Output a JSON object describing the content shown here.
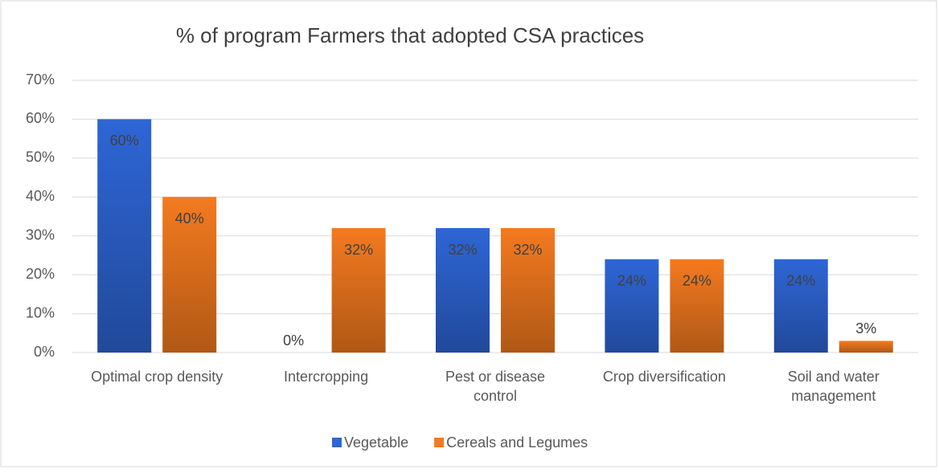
{
  "chart_data": {
    "type": "bar",
    "title": "% of program Farmers that adopted CSA practices",
    "categories": [
      "Optimal crop density",
      "Intercropping",
      "Pest or disease control",
      "Crop diversification",
      "Soil and water management"
    ],
    "series": [
      {
        "name": "Vegetable",
        "color": "#2e66d6",
        "values": [
          60,
          0,
          32,
          24,
          24
        ],
        "value_labels": [
          "60%",
          "0%",
          "32%",
          "24%",
          "24%"
        ]
      },
      {
        "name": "Cereals and Legumes",
        "color": "#f47a1f",
        "values": [
          40,
          32,
          32,
          24,
          3
        ],
        "value_labels": [
          "40%",
          "32%",
          "32%",
          "24%",
          "3%"
        ]
      }
    ],
    "ylim": [
      0,
      70
    ],
    "yticks": [
      {
        "value": 0,
        "label": "0%"
      },
      {
        "value": 10,
        "label": "10%"
      },
      {
        "value": 20,
        "label": "20%"
      },
      {
        "value": 30,
        "label": "30%"
      },
      {
        "value": 40,
        "label": "40%"
      },
      {
        "value": 50,
        "label": "50%"
      },
      {
        "value": 60,
        "label": "60%"
      },
      {
        "value": 70,
        "label": "70%"
      }
    ],
    "grid": true,
    "legend": "bottom"
  }
}
